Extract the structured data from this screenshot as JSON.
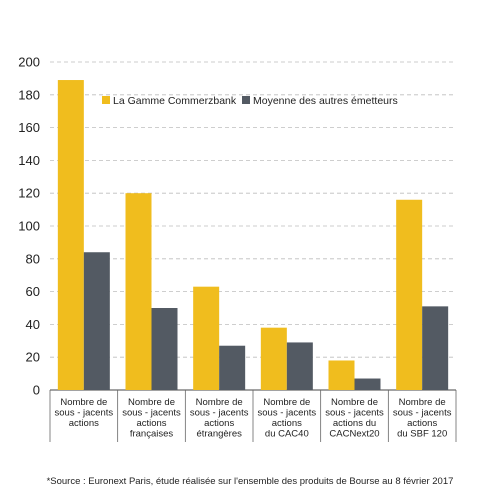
{
  "chart_data": {
    "type": "bar",
    "ylim": [
      0,
      200
    ],
    "yticks": [
      0,
      20,
      40,
      60,
      80,
      100,
      120,
      140,
      160,
      180,
      200
    ],
    "grid": true,
    "legend_position": "top-right",
    "categories": [
      [
        "Nombre de",
        "sous - jacents",
        "actions"
      ],
      [
        "Nombre de",
        "sous - jacents",
        "actions",
        "françaises"
      ],
      [
        "Nombre de",
        "sous - jacents",
        "actions",
        "étrangères"
      ],
      [
        "Nombre de",
        "sous - jacents",
        "actions",
        "du CAC40"
      ],
      [
        "Nombre de",
        "sous - jacents",
        "actions du",
        "CACNext20"
      ],
      [
        "Nombre de",
        "sous - jacents",
        "actions",
        "du SBF 120"
      ]
    ],
    "series": [
      {
        "name": "La Gamme Commerzbank",
        "color": "#f0bd1e",
        "values": [
          189,
          120,
          63,
          38,
          18,
          116
        ]
      },
      {
        "name": "Moyenne des autres émetteurs",
        "color": "#535a63",
        "values": [
          84,
          50,
          27,
          29,
          7,
          51
        ]
      }
    ]
  },
  "footnote": "*Source : Euronext Paris, étude réalisée sur l'ensemble des produits de Bourse au 8 février 2017"
}
